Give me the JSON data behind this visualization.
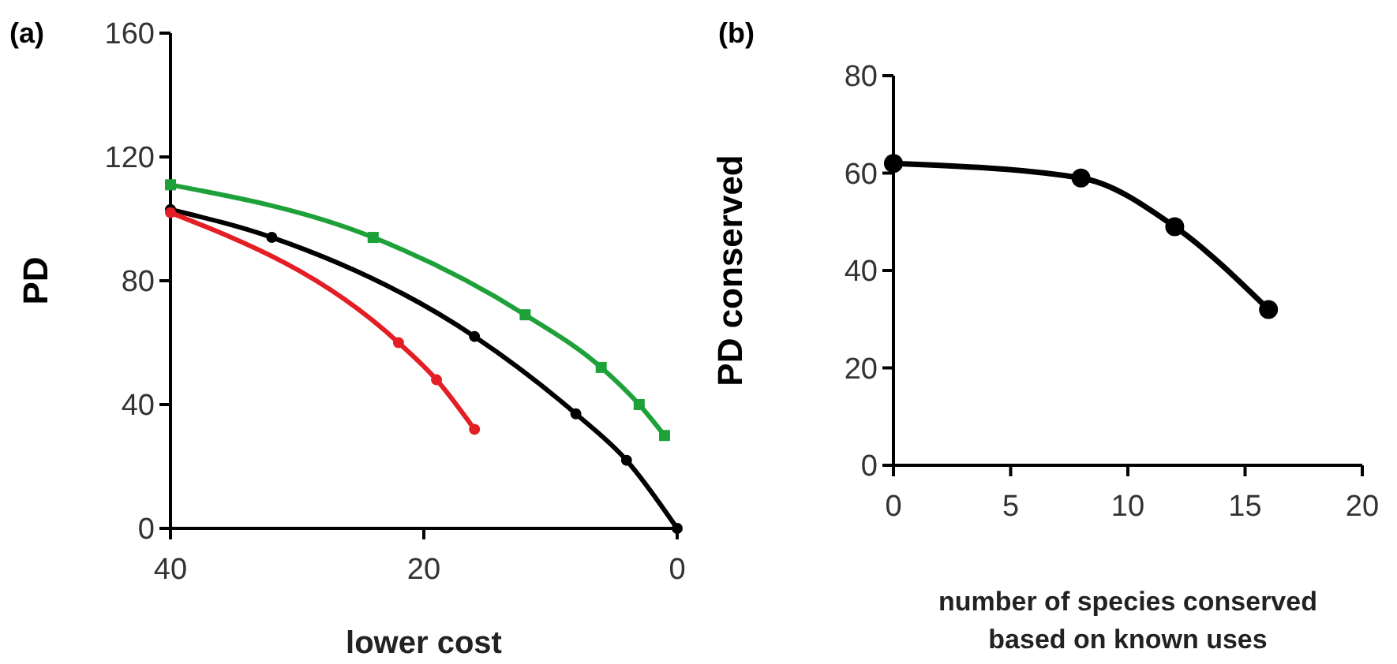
{
  "chart_data": [
    {
      "type": "line",
      "title": "(a)",
      "xlabel": "lower cost",
      "ylabel": "PD",
      "xlim": [
        40,
        0
      ],
      "xticks": [
        40,
        20,
        0
      ],
      "ylim": [
        0,
        160
      ],
      "yticks": [
        0,
        40,
        80,
        120,
        160
      ],
      "marker": "circle",
      "series": [
        {
          "color": "#1fa13a",
          "marker": "square",
          "x": [
            40,
            24,
            12,
            6,
            3,
            1
          ],
          "values": [
            111,
            94,
            69,
            52,
            40,
            30
          ]
        },
        {
          "color": "#000000",
          "x": [
            40,
            32,
            16,
            8,
            4,
            0
          ],
          "values": [
            103,
            94,
            62,
            37,
            22,
            0
          ]
        },
        {
          "color": "#e31e24",
          "x": [
            40,
            22,
            19,
            16
          ],
          "values": [
            102,
            60,
            48,
            32
          ]
        }
      ]
    },
    {
      "type": "line",
      "title": "(b)",
      "xlabel": "number of species conserved based on known uses",
      "ylabel": "PD conserved",
      "xlim": [
        0,
        20
      ],
      "xticks": [
        0,
        5,
        10,
        15,
        20
      ],
      "ylim": [
        0,
        80
      ],
      "yticks": [
        0,
        20,
        40,
        60,
        80
      ],
      "marker": "circle",
      "series": [
        {
          "color": "#000000",
          "x": [
            0,
            8,
            12,
            16
          ],
          "values": [
            62,
            59,
            49,
            32
          ]
        }
      ]
    }
  ]
}
